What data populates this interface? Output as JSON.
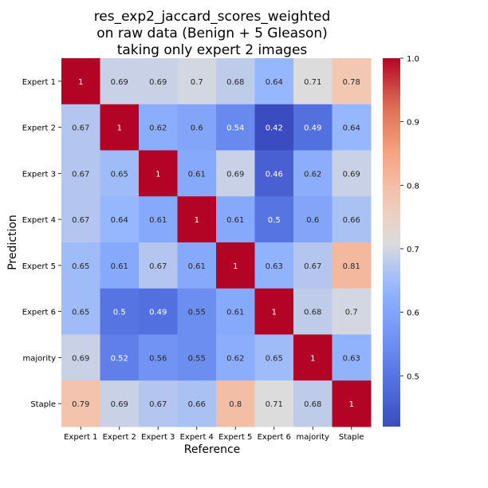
{
  "chart_data": {
    "type": "heatmap",
    "title_lines": [
      "res_exp2_jaccard_scores_weighted",
      "on raw data (Benign + 5 Gleason)",
      "taking only expert 2 images"
    ],
    "xlabel": "Reference",
    "ylabel": "Prediction",
    "x_categories": [
      "Expert 1",
      "Expert 2",
      "Expert 3",
      "Expert 4",
      "Expert 5",
      "Expert 6",
      "majority",
      "Staple"
    ],
    "y_categories": [
      "Expert 1",
      "Expert 2",
      "Expert 3",
      "Expert 4",
      "Expert 5",
      "Expert 6",
      "majority",
      "Staple"
    ],
    "values": [
      [
        1,
        0.69,
        0.69,
        0.7,
        0.68,
        0.64,
        0.71,
        0.78
      ],
      [
        0.67,
        1,
        0.62,
        0.6,
        0.54,
        0.42,
        0.49,
        0.64
      ],
      [
        0.67,
        0.65,
        1,
        0.61,
        0.69,
        0.46,
        0.62,
        0.69
      ],
      [
        0.67,
        0.64,
        0.61,
        1,
        0.61,
        0.5,
        0.6,
        0.66
      ],
      [
        0.65,
        0.61,
        0.67,
        0.61,
        1,
        0.63,
        0.67,
        0.81
      ],
      [
        0.65,
        0.5,
        0.49,
        0.55,
        0.61,
        1,
        0.68,
        0.7
      ],
      [
        0.69,
        0.52,
        0.56,
        0.55,
        0.62,
        0.65,
        1,
        0.63
      ],
      [
        0.79,
        0.69,
        0.67,
        0.66,
        0.8,
        0.71,
        0.68,
        1
      ]
    ],
    "colormap": "coolwarm",
    "vmin": 0.42,
    "vmax": 1.0,
    "colorbar_ticks": [
      0.5,
      0.6,
      0.7,
      0.8,
      0.9,
      1.0
    ],
    "colorbar_tick_labels": [
      "0.5",
      "0.6",
      "0.7",
      "0.8",
      "0.9",
      "1.0"
    ],
    "annotate": true,
    "grid": false
  }
}
